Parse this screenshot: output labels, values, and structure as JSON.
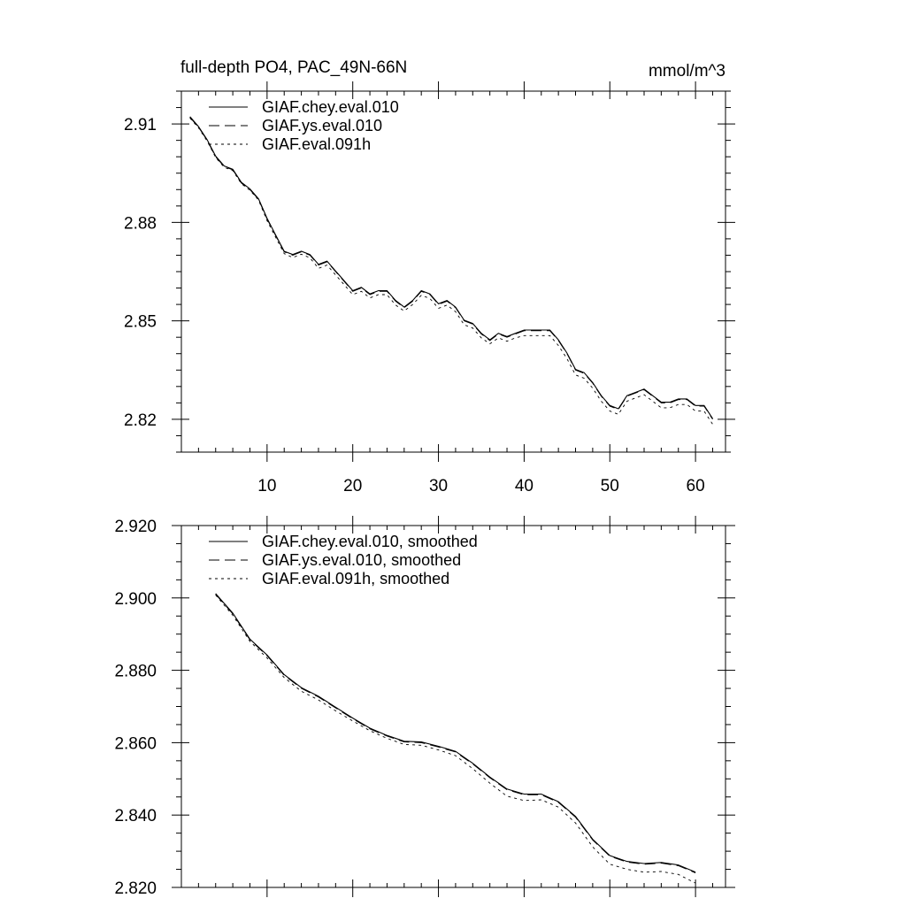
{
  "figure": {
    "title": "full-depth PO4, PAC_49N-66N",
    "units": "mmol/m^3"
  },
  "chart_data": [
    {
      "type": "line",
      "title": "full-depth PO4, PAC_49N-66N",
      "units": "mmol/m^3",
      "xlabel": "",
      "ylabel": "",
      "xlim": [
        0,
        63.5
      ],
      "ylim": [
        2.81,
        2.92
      ],
      "x_ticks": [
        10,
        20,
        30,
        40,
        50,
        60
      ],
      "x_tick_labels": [
        "10",
        "20",
        "30",
        "40",
        "50",
        "60"
      ],
      "y_ticks": [
        2.82,
        2.85,
        2.88,
        2.91
      ],
      "y_tick_labels": [
        "2.82",
        "2.85",
        "2.88",
        "2.91"
      ],
      "x": [
        1,
        2,
        3,
        4,
        5,
        6,
        7,
        8,
        9,
        10,
        11,
        12,
        13,
        14,
        15,
        16,
        17,
        18,
        19,
        20,
        21,
        22,
        23,
        24,
        25,
        26,
        27,
        28,
        29,
        30,
        31,
        32,
        33,
        34,
        35,
        36,
        37,
        38,
        39,
        40,
        41,
        42,
        43,
        44,
        45,
        46,
        47,
        48,
        49,
        50,
        51,
        52,
        53,
        54,
        55,
        56,
        57,
        58,
        59,
        60,
        61,
        62
      ],
      "legend": [
        "GIAF.chey.eval.010",
        "GIAF.ys.eval.010",
        "GIAF.eval.091h"
      ],
      "series": [
        {
          "name": "GIAF.chey.eval.010",
          "dash": "solid",
          "values": [
            2.9122,
            2.9092,
            2.9052,
            2.9002,
            2.8972,
            2.8962,
            2.8922,
            2.8902,
            2.8872,
            2.8812,
            2.8762,
            2.8712,
            2.8702,
            2.8712,
            2.8702,
            2.8672,
            2.8682,
            2.8652,
            2.8622,
            2.8592,
            2.8602,
            2.8582,
            2.8592,
            2.8592,
            2.8562,
            2.8542,
            2.8562,
            2.8592,
            2.8582,
            2.8552,
            2.8562,
            2.8542,
            2.8502,
            2.8492,
            2.8462,
            2.8442,
            2.8462,
            2.8452,
            2.8462,
            2.8472,
            2.8472,
            2.8472,
            2.8472,
            2.8442,
            2.8402,
            2.8352,
            2.8342,
            2.8312,
            2.8272,
            2.8242,
            2.8232,
            2.8272,
            2.8282,
            2.8292,
            2.8272,
            2.8252,
            2.8252,
            2.8262,
            2.8262,
            2.8242,
            2.8242,
            2.8202
          ]
        },
        {
          "name": "GIAF.ys.eval.010",
          "dash": "long-dash",
          "values": [
            2.912,
            2.909,
            2.905,
            2.9,
            2.897,
            2.896,
            2.892,
            2.89,
            2.887,
            2.881,
            2.876,
            2.871,
            2.87,
            2.871,
            2.87,
            2.867,
            2.868,
            2.865,
            2.862,
            2.859,
            2.86,
            2.858,
            2.859,
            2.859,
            2.856,
            2.854,
            2.856,
            2.859,
            2.858,
            2.855,
            2.856,
            2.854,
            2.85,
            2.849,
            2.846,
            2.844,
            2.846,
            2.845,
            2.846,
            2.847,
            2.847,
            2.847,
            2.847,
            2.844,
            2.84,
            2.835,
            2.834,
            2.831,
            2.827,
            2.824,
            2.823,
            2.827,
            2.828,
            2.829,
            2.827,
            2.825,
            2.825,
            2.826,
            2.826,
            2.824,
            2.824,
            2.82
          ]
        },
        {
          "name": "GIAF.eval.091h",
          "dash": "short-dash",
          "values": [
            2.9118,
            2.9088,
            2.9048,
            2.8998,
            2.8968,
            2.8958,
            2.8918,
            2.8898,
            2.8868,
            2.8805,
            2.8755,
            2.8705,
            2.8693,
            2.8703,
            2.8692,
            2.866,
            2.867,
            2.864,
            2.861,
            2.858,
            2.859,
            2.857,
            2.858,
            2.858,
            2.8548,
            2.853,
            2.855,
            2.8578,
            2.8568,
            2.8538,
            2.8548,
            2.8528,
            2.8488,
            2.8478,
            2.8448,
            2.843,
            2.8448,
            2.8438,
            2.8448,
            2.8455,
            2.8455,
            2.8455,
            2.8455,
            2.8425,
            2.8385,
            2.8335,
            2.8325,
            2.8295,
            2.8255,
            2.8225,
            2.8215,
            2.8255,
            2.8265,
            2.8275,
            2.8255,
            2.8235,
            2.8235,
            2.8245,
            2.8245,
            2.8225,
            2.8225,
            2.8185
          ]
        }
      ]
    },
    {
      "type": "line",
      "title": "",
      "xlabel": "",
      "ylabel": "",
      "xlim": [
        0,
        63.5
      ],
      "ylim": [
        2.82,
        2.92
      ],
      "x_ticks": [
        10,
        20,
        30,
        40,
        50,
        60
      ],
      "y_ticks": [
        2.82,
        2.84,
        2.86,
        2.88,
        2.9,
        2.92
      ],
      "y_tick_labels": [
        "2.820",
        "2.840",
        "2.860",
        "2.880",
        "2.900",
        "2.920"
      ],
      "x": [
        4,
        6,
        8,
        10,
        12,
        14,
        16,
        18,
        20,
        22,
        24,
        26,
        28,
        30,
        32,
        34,
        36,
        38,
        40,
        42,
        44,
        46,
        48,
        50,
        52,
        54,
        56,
        58,
        60
      ],
      "legend": [
        "GIAF.chey.eval.010, smoothed",
        "GIAF.ys.eval.010, smoothed",
        "GIAF.eval.091h, smoothed"
      ],
      "series": [
        {
          "name": "GIAF.chey.eval.010, smoothed",
          "dash": "solid",
          "values": [
            2.9012,
            2.8958,
            2.8886,
            2.8842,
            2.8788,
            2.8752,
            2.8728,
            2.8698,
            2.8668,
            2.864,
            2.862,
            2.8604,
            2.8602,
            2.859,
            2.8576,
            2.8543,
            2.8505,
            2.8472,
            2.8458,
            2.8458,
            2.8437,
            2.8396,
            2.8333,
            2.8288,
            2.8272,
            2.8266,
            2.8269,
            2.8262,
            2.8242
          ]
        },
        {
          "name": "GIAF.ys.eval.010, smoothed",
          "dash": "long-dash",
          "values": [
            2.901,
            2.8956,
            2.8884,
            2.884,
            2.8786,
            2.875,
            2.8726,
            2.8696,
            2.8666,
            2.8638,
            2.8618,
            2.8602,
            2.86,
            2.8588,
            2.8574,
            2.8541,
            2.8503,
            2.847,
            2.8456,
            2.8456,
            2.8435,
            2.8394,
            2.8331,
            2.8286,
            2.827,
            2.8264,
            2.8267,
            2.826,
            2.824
          ]
        },
        {
          "name": "GIAF.eval.091h, smoothed",
          "dash": "short-dash",
          "values": [
            2.9008,
            2.8952,
            2.888,
            2.8834,
            2.878,
            2.8742,
            2.8718,
            2.8688,
            2.866,
            2.8633,
            2.8612,
            2.8595,
            2.8593,
            2.858,
            2.8564,
            2.8528,
            2.8488,
            2.8452,
            2.844,
            2.8442,
            2.8422,
            2.8378,
            2.8312,
            2.8264,
            2.825,
            2.8242,
            2.8244,
            2.8236,
            2.8212
          ]
        }
      ]
    }
  ]
}
